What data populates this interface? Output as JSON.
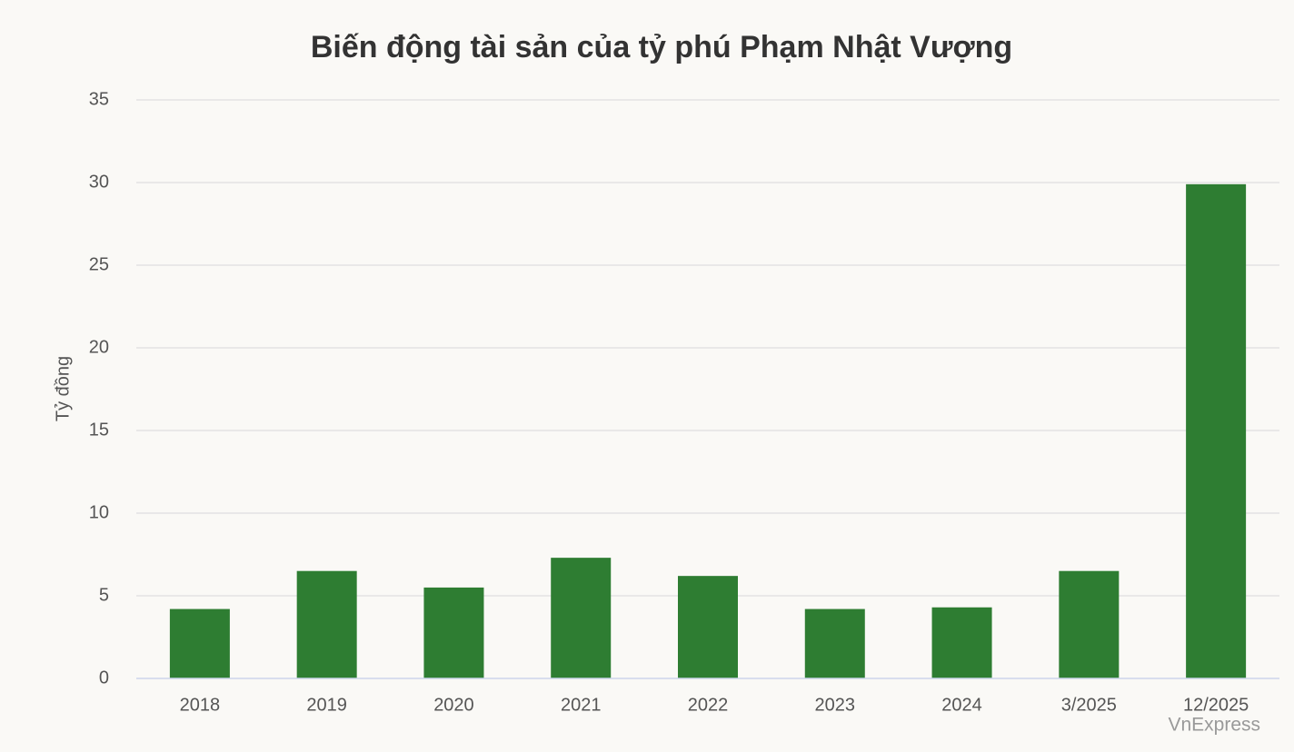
{
  "chart_data": {
    "type": "bar",
    "title": "Biến động tài sản của tỷ phú Phạm Nhật Vượng",
    "y_label": "Tỷ đồng",
    "credit": "VnExpress",
    "categories": [
      "2018",
      "2019",
      "2020",
      "2021",
      "2022",
      "2023",
      "2024",
      "3/2025",
      "12/2025"
    ],
    "values": [
      4.2,
      6.5,
      5.5,
      7.3,
      6.2,
      4.2,
      4.3,
      6.5,
      29.9
    ],
    "color": "#2e7d32",
    "ylim": [
      0,
      35
    ],
    "yticks": [
      0,
      5,
      10,
      15,
      20,
      25,
      30,
      35
    ],
    "grid": true
  }
}
